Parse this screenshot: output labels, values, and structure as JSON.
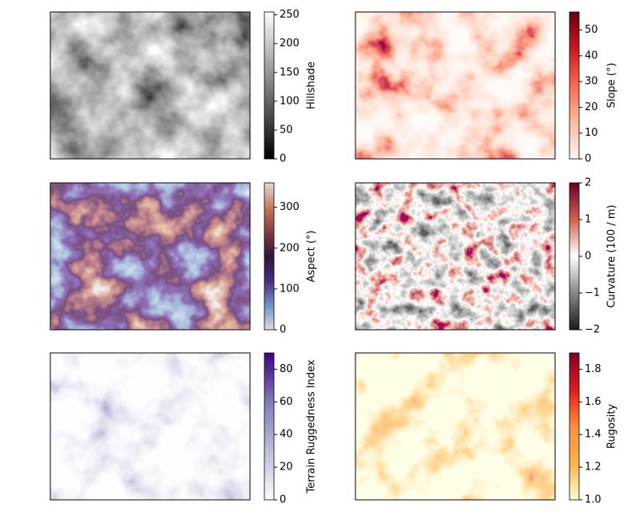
{
  "chart_data": [
    {
      "type": "heatmap",
      "colorbar_label": "Hillshade",
      "clim": [
        0,
        255
      ],
      "cticks": [
        0,
        50,
        100,
        150,
        200,
        250
      ],
      "colormap": [
        "#000000",
        "#ffffff"
      ]
    },
    {
      "type": "heatmap",
      "colorbar_label": "Slope (°)",
      "clim": [
        0,
        57
      ],
      "cticks": [
        0,
        10,
        20,
        30,
        40,
        50
      ],
      "colormap": [
        "#fff5f0",
        "#fcbba1",
        "#fb6a4a",
        "#cb181d",
        "#67000d"
      ]
    },
    {
      "type": "heatmap",
      "colorbar_label": "Aspect (°)",
      "clim": [
        0,
        360
      ],
      "cticks": [
        0,
        100,
        200,
        300
      ],
      "colormap": [
        "#e2d9e2",
        "#6f94c2",
        "#4a2b80",
        "#2f1436",
        "#8a3a44",
        "#c27c5b",
        "#e2d9e2"
      ]
    },
    {
      "type": "heatmap",
      "colorbar_label": "Curvature (100 / m)",
      "clim": [
        -2,
        2
      ],
      "cticks": [
        {
          "value": -2,
          "label": "−2"
        },
        {
          "value": -1,
          "label": "−1"
        },
        0,
        1,
        2
      ],
      "colormap": [
        "#1a1a1a",
        "#878787",
        "#ffffff",
        "#d6604d",
        "#67001f"
      ]
    },
    {
      "type": "heatmap",
      "colorbar_label": "Terrain Ruggedness Index",
      "clim": [
        0,
        90
      ],
      "cticks": [
        0,
        20,
        40,
        60,
        80
      ],
      "colormap": [
        "#fcfbfd",
        "#bcbddc",
        "#807dba",
        "#3f007d"
      ]
    },
    {
      "type": "heatmap",
      "colorbar_label": "Rugosity",
      "clim": [
        1,
        1.9
      ],
      "cticks": [
        {
          "value": 1,
          "label": "1.0"
        },
        1.2,
        1.4,
        1.6,
        1.8
      ],
      "colormap": [
        "#ffffcc",
        "#feb24c",
        "#fd8d3c",
        "#e31a1c",
        "#800026"
      ]
    }
  ]
}
